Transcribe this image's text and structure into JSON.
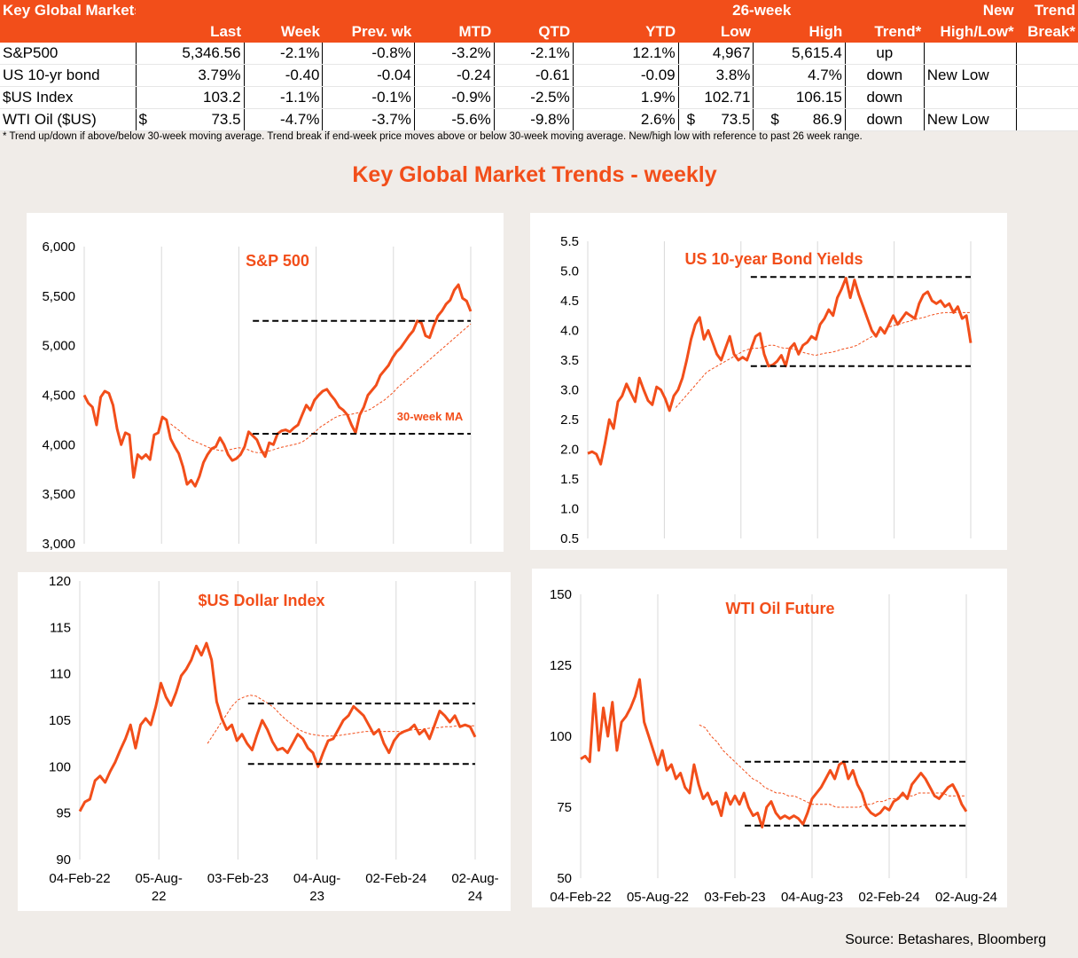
{
  "table": {
    "title": "Key Global Markets",
    "group_header": "26-week",
    "headers": [
      "Last",
      "Week",
      "Prev. wk",
      "MTD",
      "QTD",
      "YTD",
      "Low",
      "High",
      "Trend*",
      "High/Low*",
      "Break*"
    ],
    "headers_top": {
      "new": "New",
      "trend": "Trend"
    },
    "rows": [
      {
        "name": "S&P500",
        "last": "5,346.56",
        "week": "-2.1%",
        "prev": "-0.8%",
        "mtd": "-3.2%",
        "qtd": "-2.1%",
        "ytd": "12.1%",
        "low": "4,967",
        "high": "5,615.4",
        "trend": "up",
        "hilo": "",
        "brk": ""
      },
      {
        "name": "US 10-yr bond",
        "last": "3.79%",
        "week": "-0.40",
        "prev": "-0.04",
        "mtd": "-0.24",
        "qtd": "-0.61",
        "ytd": "-0.09",
        "low": "3.8%",
        "high": "4.7%",
        "trend": "down",
        "hilo": "New Low",
        "brk": ""
      },
      {
        "name": "$US Index",
        "last": "103.2",
        "week": "-1.1%",
        "prev": "-0.1%",
        "mtd": "-0.9%",
        "qtd": "-2.5%",
        "ytd": "1.9%",
        "low": "102.71",
        "high": "106.15",
        "trend": "down",
        "hilo": "",
        "brk": ""
      },
      {
        "name": "WTI Oil ($US)",
        "last_prefix": "$",
        "last": "73.5",
        "week": "-4.7%",
        "prev": "-3.7%",
        "mtd": "-5.6%",
        "qtd": "-9.8%",
        "ytd": "2.6%",
        "low_prefix": "$",
        "low": "73.5",
        "high_prefix": "$",
        "high": "86.9",
        "trend": "down",
        "hilo": "New Low",
        "brk": ""
      }
    ]
  },
  "footnote": "*  Trend up/down if above/below 30-week moving average. Trend break if end-week price moves above or below 30-week moving average.  New/high low with reference to past 26 week range.",
  "section_title": "Key Global Market Trends - weekly",
  "source": "Source:  Betashares, Bloomberg",
  "colors": {
    "accent": "#f24e1a",
    "line": "#f24e1a",
    "ma": "#f24e1a",
    "dashed": "#000000",
    "grid": "#d9d9d9"
  },
  "x_tick_labels": [
    "04-Feb-22",
    "05-Aug-22",
    "03-Feb-23",
    "04-Aug-23",
    "02-Feb-24",
    "02-Aug-24"
  ],
  "chart_data": [
    {
      "type": "line",
      "title": "S&P 500",
      "ylim": [
        3000,
        6000
      ],
      "yticks": [
        "3,000",
        "3,500",
        "4,000",
        "4,500",
        "5,000",
        "5,500",
        "6,000"
      ],
      "ytick_values": [
        3000,
        3500,
        4000,
        4500,
        5000,
        5500,
        6000
      ],
      "ma_label": "30-week MA",
      "series": [
        {
          "values": [
            4500,
            4420,
            4380,
            4200,
            4480,
            4540,
            4520,
            4400,
            4160,
            4000,
            4120,
            4100,
            3670,
            3900,
            3860,
            3900,
            3850,
            4100,
            4120,
            4280,
            4250,
            4060,
            3980,
            3910,
            3780,
            3600,
            3640,
            3580,
            3680,
            3820,
            3900,
            3960,
            3980,
            4070,
            4000,
            3900,
            3840,
            3860,
            3900,
            3980,
            4130,
            4090,
            4050,
            3950,
            3880,
            4020,
            4000,
            4110,
            4140,
            4150,
            4130,
            4170,
            4200,
            4300,
            4400,
            4350,
            4450,
            4500,
            4540,
            4560,
            4500,
            4450,
            4380,
            4350,
            4300,
            4200,
            4120,
            4300,
            4380,
            4500,
            4550,
            4600,
            4700,
            4750,
            4800,
            4880,
            4940,
            4980,
            5040,
            5100,
            5150,
            5250,
            5230,
            5100,
            5080,
            5200,
            5300,
            5350,
            5420,
            5460,
            5560,
            5615,
            5480,
            5450,
            5346
          ]
        },
        {
          "values": [
            null,
            null,
            null,
            null,
            null,
            null,
            null,
            null,
            null,
            null,
            null,
            null,
            null,
            null,
            null,
            null,
            null,
            null,
            null,
            4210,
            4175,
            4140,
            4100,
            4060,
            4040,
            4020,
            4000,
            3980,
            3960,
            3950,
            3940,
            3940,
            3950,
            3960,
            3970,
            3960,
            3950,
            3930,
            3920,
            3920,
            3930,
            3940,
            3955,
            3970,
            3980,
            3990,
            4000,
            4010,
            4030,
            4060,
            4100,
            4140,
            4180,
            4210,
            4240,
            4270,
            4290,
            4300,
            4300,
            4310,
            4320,
            4330,
            4340,
            4360,
            4390,
            4420,
            4450,
            4490,
            4530,
            4580,
            4620,
            4660,
            4700,
            4740,
            4780,
            4820,
            4860,
            4900,
            4940,
            4980,
            5020,
            5060,
            5100,
            5140,
            5180,
            5220
          ]
        }
      ],
      "hlines": [
        {
          "y": 5250,
          "x_from": 41,
          "x_to": 94
        },
        {
          "y": 4110,
          "x_from": 41,
          "x_to": 94
        }
      ]
    },
    {
      "type": "line",
      "title": "US 10-year Bond Yields",
      "ylim": [
        0.5,
        5.5
      ],
      "yticks": [
        "0.5",
        "1.0",
        "1.5",
        "2.0",
        "2.5",
        "3.0",
        "3.5",
        "4.0",
        "4.5",
        "5.0",
        "5.5"
      ],
      "ytick_values": [
        0.5,
        1.0,
        1.5,
        2.0,
        2.5,
        3.0,
        3.5,
        4.0,
        4.5,
        5.0,
        5.5
      ],
      "series": [
        {
          "values": [
            1.93,
            1.96,
            1.92,
            1.75,
            2.1,
            2.5,
            2.35,
            2.8,
            2.9,
            3.1,
            2.95,
            2.8,
            3.2,
            3.0,
            2.82,
            2.75,
            3.05,
            3.0,
            2.85,
            2.65,
            2.9,
            3.0,
            3.2,
            3.5,
            3.85,
            4.1,
            4.22,
            3.85,
            4.0,
            3.8,
            3.6,
            3.5,
            3.7,
            3.9,
            3.6,
            3.5,
            3.55,
            3.5,
            3.7,
            3.9,
            3.95,
            3.6,
            3.4,
            3.42,
            3.48,
            3.58,
            3.4,
            3.7,
            3.78,
            3.6,
            3.75,
            3.8,
            3.9,
            3.85,
            4.1,
            4.2,
            4.35,
            4.25,
            4.55,
            4.7,
            4.88,
            4.55,
            4.85,
            4.6,
            4.4,
            4.2,
            4.0,
            3.9,
            4.05,
            3.95,
            4.1,
            4.25,
            4.1,
            4.2,
            4.3,
            4.25,
            4.2,
            4.45,
            4.6,
            4.65,
            4.5,
            4.45,
            4.5,
            4.4,
            4.45,
            4.3,
            4.4,
            4.2,
            4.25,
            3.79
          ]
        },
        {
          "values": [
            null,
            null,
            null,
            null,
            null,
            null,
            null,
            null,
            null,
            null,
            null,
            null,
            null,
            null,
            null,
            null,
            null,
            2.7,
            2.8,
            2.9,
            3.0,
            3.1,
            3.2,
            3.3,
            3.35,
            3.4,
            3.45,
            3.5,
            3.55,
            3.6,
            3.65,
            3.68,
            3.7,
            3.7,
            3.72,
            3.75,
            3.75,
            3.72,
            3.7,
            3.7,
            3.68,
            3.65,
            3.62,
            3.6,
            3.58,
            3.6,
            3.62,
            3.63,
            3.65,
            3.68,
            3.7,
            3.72,
            3.75,
            3.8,
            3.85,
            3.9,
            3.95,
            4.0,
            4.05,
            4.08,
            4.1,
            4.13,
            4.15,
            4.18,
            4.2,
            4.22,
            4.25,
            4.27,
            4.29,
            4.3,
            4.3,
            4.3,
            4.3,
            4.3,
            4.3
          ]
        }
      ],
      "hlines": [
        {
          "y": 4.9,
          "x_from": 40,
          "x_to": 94
        },
        {
          "y": 3.4,
          "x_from": 40,
          "x_to": 94
        }
      ]
    },
    {
      "type": "line",
      "title": "$US Dollar Index",
      "ylim": [
        90,
        120
      ],
      "yticks": [
        "90",
        "95",
        "100",
        "105",
        "110",
        "115",
        "120"
      ],
      "ytick_values": [
        90,
        95,
        100,
        105,
        110,
        115,
        120
      ],
      "series": [
        {
          "values": [
            95.2,
            96.2,
            96.5,
            98.5,
            99.0,
            98.3,
            99.5,
            100.5,
            101.8,
            103.0,
            104.5,
            102.0,
            104.5,
            105.2,
            104.5,
            106.5,
            109.0,
            107.5,
            106.6,
            108.0,
            109.8,
            110.5,
            111.5,
            113.0,
            112.0,
            113.3,
            111.5,
            107.0,
            105.2,
            104.0,
            104.5,
            102.8,
            103.5,
            102.5,
            101.8,
            103.5,
            105.0,
            104.0,
            102.7,
            101.8,
            102.0,
            101.5,
            102.5,
            103.5,
            103.0,
            102.0,
            101.5,
            100.0,
            101.5,
            102.8,
            103.0,
            104.0,
            105.0,
            105.5,
            106.5,
            106.0,
            105.5,
            104.5,
            103.5,
            104.0,
            102.5,
            101.5,
            102.8,
            103.5,
            103.8,
            104.0,
            104.5,
            103.5,
            104.0,
            103.0,
            104.5,
            106.0,
            105.5,
            104.8,
            105.5,
            104.3,
            104.5,
            104.3,
            103.2
          ]
        },
        {
          "values": [
            null,
            null,
            null,
            null,
            null,
            null,
            null,
            null,
            null,
            null,
            null,
            null,
            null,
            null,
            null,
            null,
            null,
            null,
            null,
            null,
            null,
            102.5,
            103.5,
            104.5,
            105.5,
            106.5,
            107.2,
            107.5,
            107.7,
            107.6,
            107.2,
            106.8,
            106.3,
            105.6,
            105.0,
            104.5,
            104.0,
            103.7,
            103.5,
            103.4,
            103.3,
            103.3,
            103.3,
            103.4,
            103.5,
            103.6,
            103.7,
            103.8,
            103.8,
            103.8,
            103.8,
            103.8,
            103.8,
            103.8,
            103.9,
            104.0,
            104.0,
            104.1,
            104.2,
            104.2,
            104.3,
            104.3,
            104.4,
            104.4,
            104.4,
            104.4
          ]
        }
      ],
      "hlines": [
        {
          "y": 106.8,
          "x_from": 40,
          "x_to": 94
        },
        {
          "y": 100.3,
          "x_from": 40,
          "x_to": 94
        }
      ]
    },
    {
      "type": "line",
      "title": "WTI Oil Future",
      "ylim": [
        50,
        150
      ],
      "yticks": [
        "50",
        "75",
        "100",
        "125",
        "150"
      ],
      "ytick_values": [
        50,
        75,
        100,
        125,
        150
      ],
      "series": [
        {
          "values": [
            92,
            93,
            91,
            115,
            95,
            110,
            100,
            112,
            95,
            105,
            107,
            110,
            114,
            120,
            105,
            100,
            95,
            90,
            95,
            88,
            90,
            85,
            87,
            82,
            80,
            90,
            83,
            78,
            80,
            76,
            77,
            72,
            80,
            76,
            79,
            76,
            80,
            75,
            72,
            73,
            68,
            75,
            77,
            73,
            71,
            72,
            71,
            72,
            71,
            69,
            73,
            78,
            80,
            82,
            85,
            88,
            85,
            90,
            91,
            85,
            88,
            83,
            80,
            75,
            73,
            72,
            73,
            75,
            74,
            77,
            78,
            80,
            78,
            83,
            85,
            87,
            85,
            82,
            79,
            78,
            80,
            82,
            83,
            80,
            76,
            73.5
          ]
        },
        {
          "values": [
            null,
            null,
            null,
            null,
            null,
            null,
            null,
            null,
            null,
            null,
            null,
            null,
            null,
            null,
            null,
            null,
            null,
            null,
            null,
            null,
            104,
            103,
            100,
            98,
            95,
            93,
            91,
            89,
            87,
            85,
            84,
            82,
            81,
            80,
            80,
            79,
            79,
            78,
            77,
            76,
            76,
            76,
            76,
            75,
            75,
            75,
            75,
            75,
            76,
            76,
            77,
            77,
            78,
            78,
            79,
            79,
            79,
            80,
            80,
            80,
            80,
            80,
            79,
            79,
            79,
            79
          ]
        }
      ],
      "hlines": [
        {
          "y": 91,
          "x_from": 40,
          "x_to": 94
        },
        {
          "y": 68.5,
          "x_from": 40,
          "x_to": 94
        }
      ]
    }
  ]
}
